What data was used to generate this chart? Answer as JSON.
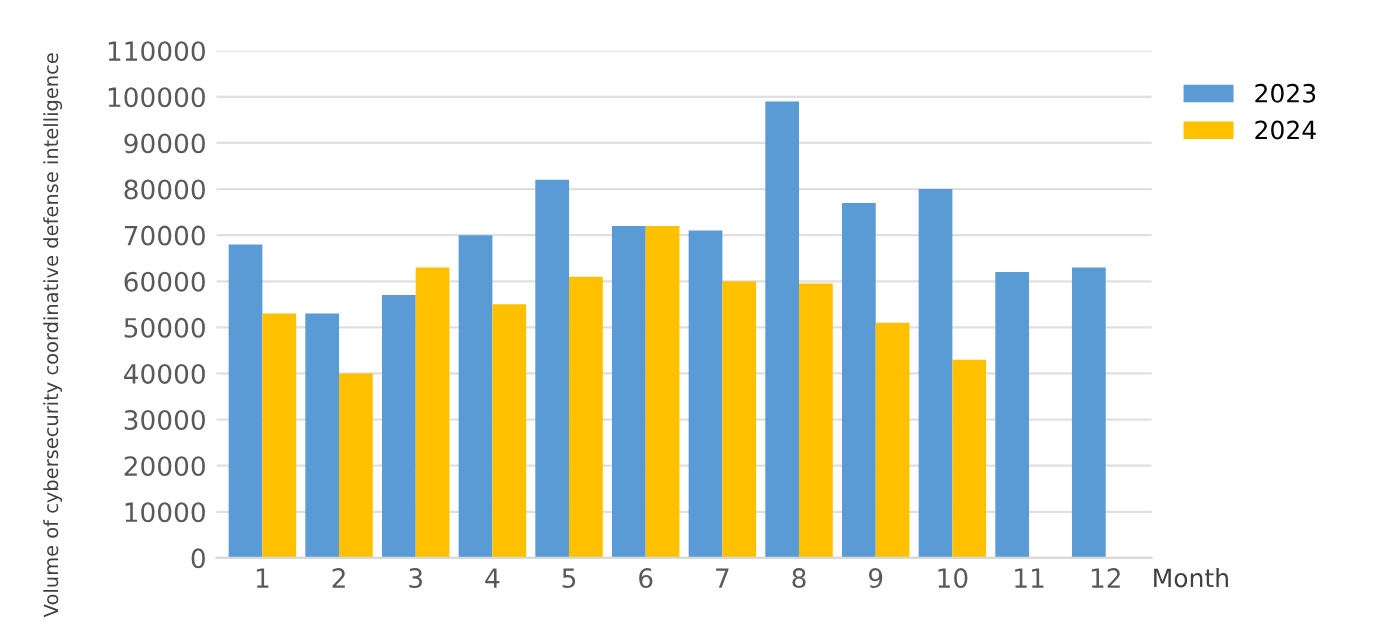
{
  "chart_data": {
    "type": "bar",
    "xlabel": "Month",
    "ylabel": "Volume of cybersecurity coordinative defense intelligence",
    "categories": [
      "1",
      "2",
      "3",
      "4",
      "5",
      "6",
      "7",
      "8",
      "9",
      "10",
      "11",
      "12"
    ],
    "series": [
      {
        "name": "2023",
        "color": "#5b9bd5",
        "values": [
          68000,
          53000,
          57000,
          70000,
          82000,
          72000,
          71000,
          99000,
          77000,
          80000,
          62000,
          63000
        ]
      },
      {
        "name": "2024",
        "color": "#ffc000",
        "values": [
          53000,
          40000,
          63000,
          55000,
          61000,
          72000,
          60000,
          59500,
          51000,
          43000,
          null,
          null
        ]
      }
    ],
    "ylim": [
      0,
      110000
    ],
    "yticks": [
      0,
      10000,
      20000,
      30000,
      40000,
      50000,
      60000,
      70000,
      80000,
      90000,
      100000,
      110000
    ],
    "grid": "y",
    "legend": "top right"
  }
}
